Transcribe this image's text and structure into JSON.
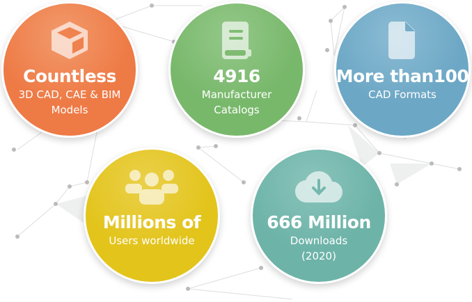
{
  "colors": {
    "orange": "#EE7A45",
    "green": "#78B86B",
    "blue": "#6CA7C5",
    "yellow": "#E3C41B",
    "teal": "#6DB3A8"
  },
  "stats": [
    {
      "icon": "cube-icon",
      "title": "Countless",
      "lines": [
        "3D CAD, CAE & BIM",
        "Models"
      ]
    },
    {
      "icon": "book-icon",
      "title": "4916",
      "lines": [
        "Manufacturer",
        "Catalogs"
      ]
    },
    {
      "icon": "document-icon",
      "title": "More than100",
      "lines": [
        "CAD Formats"
      ]
    },
    {
      "icon": "users-icon",
      "title": "Millions of",
      "lines": [
        "Users worldwide"
      ]
    },
    {
      "icon": "cloud-download-icon",
      "title": "666 Million",
      "lines": [
        "Downloads",
        "(2020)"
      ]
    }
  ]
}
